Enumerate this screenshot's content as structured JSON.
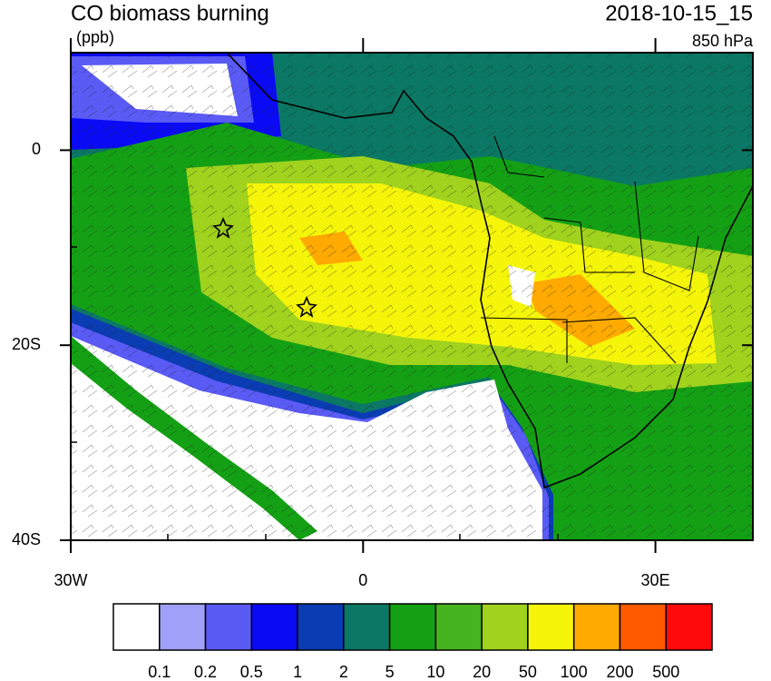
{
  "title": "CO biomass burning",
  "units": "(ppb)",
  "time": "2018-10-15_15",
  "level": "850 hPa",
  "map": {
    "lon_range": [
      -30,
      40
    ],
    "lat_range": [
      -40,
      10
    ],
    "lon_ticks": [
      {
        "value": -30,
        "label": "30W"
      },
      {
        "value": 0,
        "label": "0"
      },
      {
        "value": 30,
        "label": "30E"
      }
    ],
    "lat_ticks": [
      {
        "value": 0,
        "label": "0"
      },
      {
        "value": -20,
        "label": "20S"
      },
      {
        "value": -40,
        "label": "40S"
      }
    ]
  },
  "colorbar": {
    "colors": [
      "#ffffff",
      "#a0a0f8",
      "#5a5af5",
      "#0a0af5",
      "#0a3cb4",
      "#0a7864",
      "#14a014",
      "#46b41e",
      "#a0d21e",
      "#f5f50a",
      "#ffaa00",
      "#ff5a00",
      "#ff0a0a"
    ],
    "levels": [
      0.1,
      0.2,
      0.5,
      1,
      2,
      5,
      10,
      20,
      50,
      100,
      200,
      500
    ]
  }
}
